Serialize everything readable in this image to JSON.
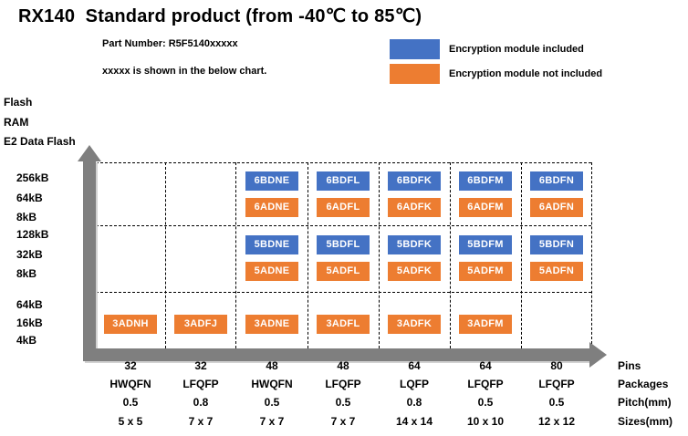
{
  "title": "RX140  Standard product (from -40℃ to 85℃)",
  "notes": {
    "part_number": "Part Number: R5F5140xxxxx",
    "note": "xxxxx is shown in the below chart."
  },
  "colors": {
    "encryption_included": "#4472C4",
    "encryption_not_included": "#ED7D31",
    "axis_arrow": "#7F7F7F"
  },
  "chart_data": {
    "type": "table",
    "title": "RX140  Standard product (from -40℃ to 85℃)",
    "legend": [
      {
        "label": "Encryption module included",
        "color": "#4472C4"
      },
      {
        "label": "Encryption module not included",
        "color": "#ED7D31"
      }
    ],
    "y_axis": {
      "captions": [
        "Flash",
        "RAM",
        "E2 Data Flash"
      ],
      "groups": [
        [
          "256kB",
          "64kB",
          "8kB"
        ],
        [
          "128kB",
          "32kB",
          "8kB"
        ],
        [
          "64kB",
          "16kB",
          "4kB"
        ]
      ]
    },
    "x_axis": {
      "captions": [
        "Pins",
        "Packages",
        "Pitch(mm)",
        "Sizes(mm)"
      ],
      "columns": [
        {
          "pins": "32",
          "package": "HWQFN",
          "pitch": "0.5",
          "size": "5 x 5"
        },
        {
          "pins": "32",
          "package": "LFQFP",
          "pitch": "0.8",
          "size": "7 x 7"
        },
        {
          "pins": "48",
          "package": "HWQFN",
          "pitch": "0.5",
          "size": "7 x 7"
        },
        {
          "pins": "48",
          "package": "LFQFP",
          "pitch": "0.5",
          "size": "7 x 7"
        },
        {
          "pins": "64",
          "package": "LQFP",
          "pitch": "0.8",
          "size": "14 x 14"
        },
        {
          "pins": "64",
          "package": "LFQFP",
          "pitch": "0.5",
          "size": "10 x 10"
        },
        {
          "pins": "80",
          "package": "LFQFP",
          "pitch": "0.5",
          "size": "12 x 12"
        }
      ]
    },
    "cells": [
      {
        "row": 0,
        "col": 2,
        "included": "6BDNE",
        "not_included": "6ADNE"
      },
      {
        "row": 0,
        "col": 3,
        "included": "6BDFL",
        "not_included": "6ADFL"
      },
      {
        "row": 0,
        "col": 4,
        "included": "6BDFK",
        "not_included": "6ADFK"
      },
      {
        "row": 0,
        "col": 5,
        "included": "6BDFM",
        "not_included": "6ADFM"
      },
      {
        "row": 0,
        "col": 6,
        "included": "6BDFN",
        "not_included": "6ADFN"
      },
      {
        "row": 1,
        "col": 2,
        "included": "5BDNE",
        "not_included": "5ADNE"
      },
      {
        "row": 1,
        "col": 3,
        "included": "5BDFL",
        "not_included": "5ADFL"
      },
      {
        "row": 1,
        "col": 4,
        "included": "5BDFK",
        "not_included": "5ADFK"
      },
      {
        "row": 1,
        "col": 5,
        "included": "5BDFM",
        "not_included": "5ADFM"
      },
      {
        "row": 1,
        "col": 6,
        "included": "5BDFN",
        "not_included": "5ADFN"
      },
      {
        "row": 2,
        "col": 0,
        "not_included": "3ADNH"
      },
      {
        "row": 2,
        "col": 1,
        "not_included": "3ADFJ"
      },
      {
        "row": 2,
        "col": 2,
        "not_included": "3ADNE"
      },
      {
        "row": 2,
        "col": 3,
        "not_included": "3ADFL"
      },
      {
        "row": 2,
        "col": 4,
        "not_included": "3ADFK"
      },
      {
        "row": 2,
        "col": 5,
        "not_included": "3ADFM"
      }
    ]
  }
}
